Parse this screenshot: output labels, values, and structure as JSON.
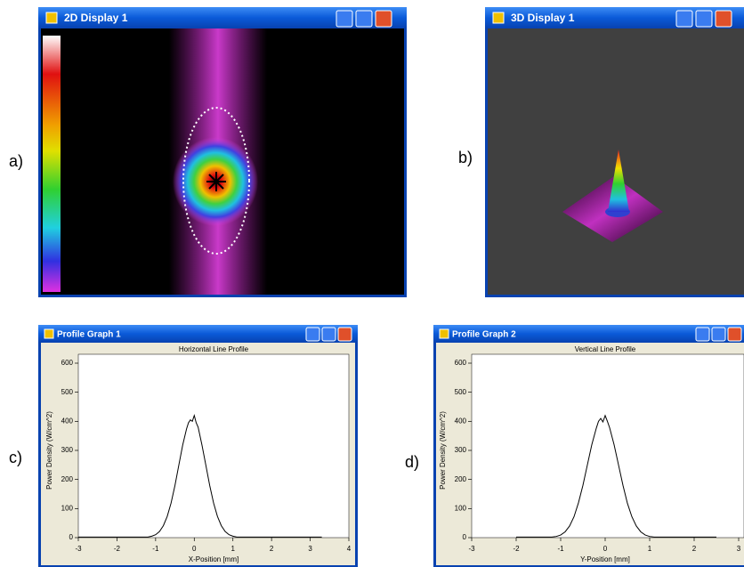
{
  "windows": [
    {
      "title": "2D Display 1"
    },
    {
      "title": "3D Display 1"
    },
    {
      "title": "Profile Graph 1"
    },
    {
      "title": "Profile Graph 2"
    }
  ],
  "panel_labels": [
    "a)",
    "b)",
    "c)",
    "d)"
  ],
  "chart_data": [
    {
      "type": "line",
      "title": "Horizontal Line Profile",
      "x_label": "X-Position [mm]",
      "y_label": "Power Density (W/cm^2)",
      "color": "#000000",
      "x": [
        -3,
        -1.2,
        -1.1,
        -1.0,
        -0.9,
        -0.8,
        -0.7,
        -0.6,
        -0.5,
        -0.4,
        -0.3,
        -0.2,
        -0.15,
        -0.1,
        -0.05,
        0,
        0.05,
        0.1,
        0.2,
        0.3,
        0.4,
        0.5,
        0.6,
        0.7,
        0.8,
        0.9,
        1.0,
        1.1,
        3.3
      ],
      "values": [
        2,
        2,
        5,
        10,
        21,
        41,
        73,
        119,
        179,
        249,
        318,
        374,
        395,
        405,
        400,
        420,
        395,
        380,
        318,
        249,
        179,
        119,
        73,
        41,
        21,
        10,
        5,
        2,
        2
      ],
      "xlim": [
        -3,
        4
      ],
      "ylim": [
        0,
        600
      ],
      "xticks": [
        -3,
        -2,
        -1,
        0,
        1,
        2,
        3,
        4
      ],
      "yticks": [
        0,
        100,
        200,
        300,
        400,
        500,
        600
      ]
    },
    {
      "type": "line",
      "title": "Vertical Line Profile",
      "x_label": "Y-Position [mm]",
      "y_label": "Power Density (W/cm^2)",
      "color": "#000000",
      "x": [
        -2,
        -1.2,
        -1.1,
        -1.0,
        -0.9,
        -0.8,
        -0.7,
        -0.6,
        -0.5,
        -0.4,
        -0.3,
        -0.2,
        -0.15,
        -0.1,
        -0.05,
        0,
        0.05,
        0.1,
        0.2,
        0.3,
        0.4,
        0.5,
        0.6,
        0.7,
        0.8,
        0.9,
        1.0,
        1.1,
        2.5
      ],
      "values": [
        2,
        2,
        4,
        9,
        20,
        40,
        72,
        120,
        180,
        250,
        320,
        376,
        400,
        410,
        398,
        420,
        400,
        378,
        320,
        250,
        180,
        118,
        72,
        40,
        20,
        9,
        4,
        2,
        2
      ],
      "xlim": [
        -3,
        3
      ],
      "ylim": [
        0,
        600
      ],
      "xticks": [
        -3,
        -2,
        -1,
        0,
        1,
        2,
        3
      ],
      "yticks": [
        0,
        100,
        200,
        300,
        400,
        500,
        600
      ]
    }
  ]
}
